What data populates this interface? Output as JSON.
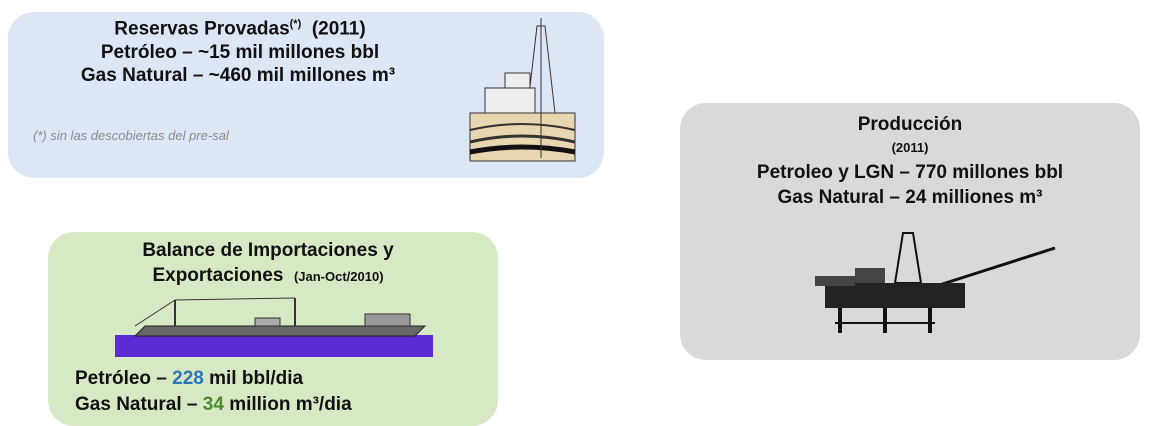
{
  "reserves": {
    "title": "Reservas Provadas",
    "marker": "(*)",
    "year": "(2011)",
    "lines": [
      "Petróleo – ~15 mil millones bbl",
      "Gas Natural – ~460 mil millones m³"
    ],
    "footnote": "(*) sin las descobiertas del pre-sal"
  },
  "production": {
    "title": "Producción",
    "year": "(2011)",
    "lines": [
      "Petroleo y LGN – 770 millones bbl",
      "Gas Natural – 24 milliones m³"
    ]
  },
  "balance": {
    "title_line1": "Balance de Importaciones y",
    "title_line2": "Exportaciones",
    "period": "(Jan-Oct/2010)",
    "oil": {
      "label": "Petróleo – ",
      "value": 228,
      "unit": " mil bbl/dia"
    },
    "gas": {
      "label": "Gas Natural – ",
      "value": 34,
      "unit": " million m³/dia"
    }
  }
}
